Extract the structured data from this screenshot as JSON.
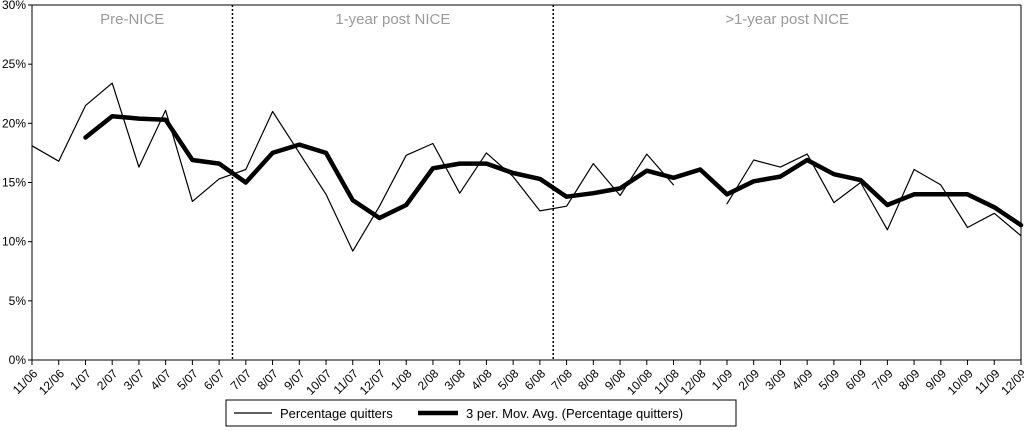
{
  "chart_data": {
    "type": "line",
    "title": "",
    "xlabel": "",
    "ylabel": "",
    "ylim": [
      0,
      30
    ],
    "y_ticks": [
      "0%",
      "5%",
      "10%",
      "15%",
      "20%",
      "25%",
      "30%"
    ],
    "y_tick_values": [
      0,
      5,
      10,
      15,
      20,
      25,
      30
    ],
    "grid": false,
    "legend_position": "bottom",
    "categories": [
      "11/06",
      "12/06",
      "1/07",
      "2/07",
      "3/07",
      "4/07",
      "5/07",
      "6/07",
      "7/07",
      "8/07",
      "9/07",
      "10/07",
      "11/07",
      "12/07",
      "1/08",
      "2/08",
      "3/08",
      "4/08",
      "5/08",
      "6/08",
      "7/08",
      "8/08",
      "9/08",
      "10/08",
      "11/08",
      "12/08",
      "1/09",
      "2/09",
      "3/09",
      "4/09",
      "5/09",
      "6/09",
      "7/09",
      "8/09",
      "9/09",
      "10/09",
      "11/09",
      "12/09"
    ],
    "periods": [
      {
        "label": "Pre-NICE",
        "start_index": 0,
        "end_index": 8
      },
      {
        "label": "1-year post NICE",
        "start_index": 8,
        "end_index": 20
      },
      {
        "label": ">1-year post NICE",
        "start_index": 20,
        "end_index": 37
      }
    ],
    "divider_after_index": [
      7.5,
      19.5
    ],
    "series": [
      {
        "name": "Percentage quitters",
        "color": "#000000",
        "style": "thin",
        "values": [
          18.1,
          16.8,
          21.5,
          23.4,
          16.3,
          21.1,
          13.4,
          15.3,
          16.1,
          21.0,
          17.5,
          14.0,
          9.2,
          13.0,
          17.3,
          18.3,
          14.1,
          17.5,
          15.5,
          12.6,
          13.0,
          16.6,
          13.9,
          17.4,
          14.8,
          null,
          13.2,
          16.9,
          16.3,
          17.4,
          13.3,
          15.0,
          11.0,
          16.1,
          14.8,
          11.2,
          12.4,
          10.5
        ]
      },
      {
        "name": "3 per. Mov. Avg. (Percentage quitters)",
        "color": "#000000",
        "style": "thick",
        "values": [
          null,
          null,
          18.8,
          20.6,
          20.4,
          20.3,
          16.9,
          16.6,
          15.0,
          17.5,
          18.2,
          17.5,
          13.5,
          12.0,
          13.1,
          16.2,
          16.6,
          16.6,
          15.8,
          15.3,
          13.8,
          14.1,
          14.5,
          16.0,
          15.4,
          16.1,
          14.0,
          15.1,
          15.5,
          16.9,
          15.7,
          15.2,
          13.1,
          14.0,
          14.0,
          14.0,
          12.9,
          11.4
        ]
      }
    ]
  }
}
